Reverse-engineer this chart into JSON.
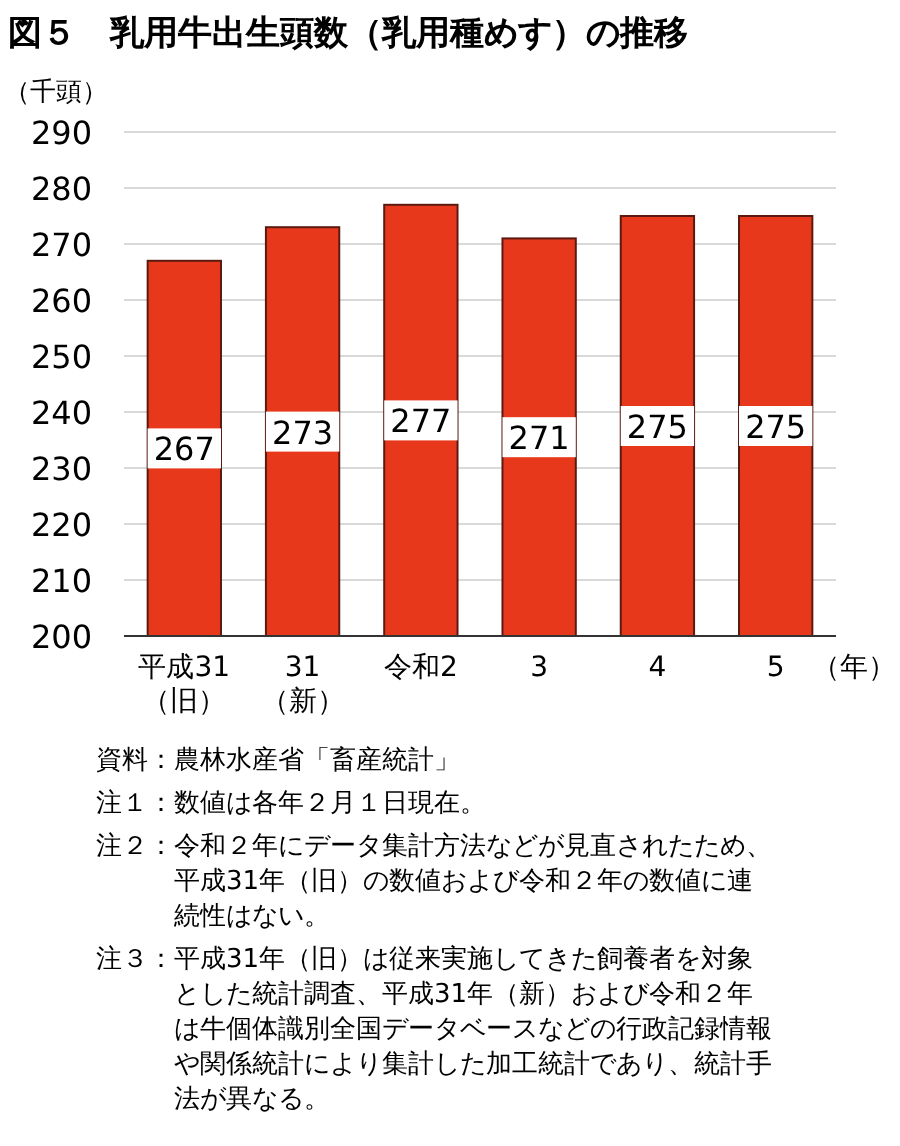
{
  "chart_data": {
    "type": "bar",
    "title": "図５　乳用牛出生頭数（乳用種めす）の推移",
    "ylabel": "（千頭）",
    "xlabel": "（年）",
    "categories": [
      "平成31\n（旧）",
      "31\n（新）",
      "令和2",
      "3",
      "4",
      "5"
    ],
    "values": [
      267,
      273,
      277,
      271,
      275,
      275
    ],
    "color": "#e8381c",
    "data_labels": true,
    "ylim": [
      200,
      290
    ],
    "yticks": [
      200,
      210,
      220,
      230,
      240,
      250,
      260,
      270,
      280,
      290
    ],
    "grid": "y",
    "annotations": [
      "資料：農林水産省「畜産統計」",
      "注１：数値は各年２月１日現在。",
      "注２：令和２年にデータ集計方法などが見直されたため、平成31年（旧）の数値および令和２年の数値に連続性はない。",
      "注３：平成31年（旧）は従来実施してきた飼養者を対象とした統計調査、平成31年（新）および令和２年は牛個体識別全国データベースなどの行政記録情報や関係統計により集計した加工統計であり、統計手法が異なる。"
    ]
  }
}
